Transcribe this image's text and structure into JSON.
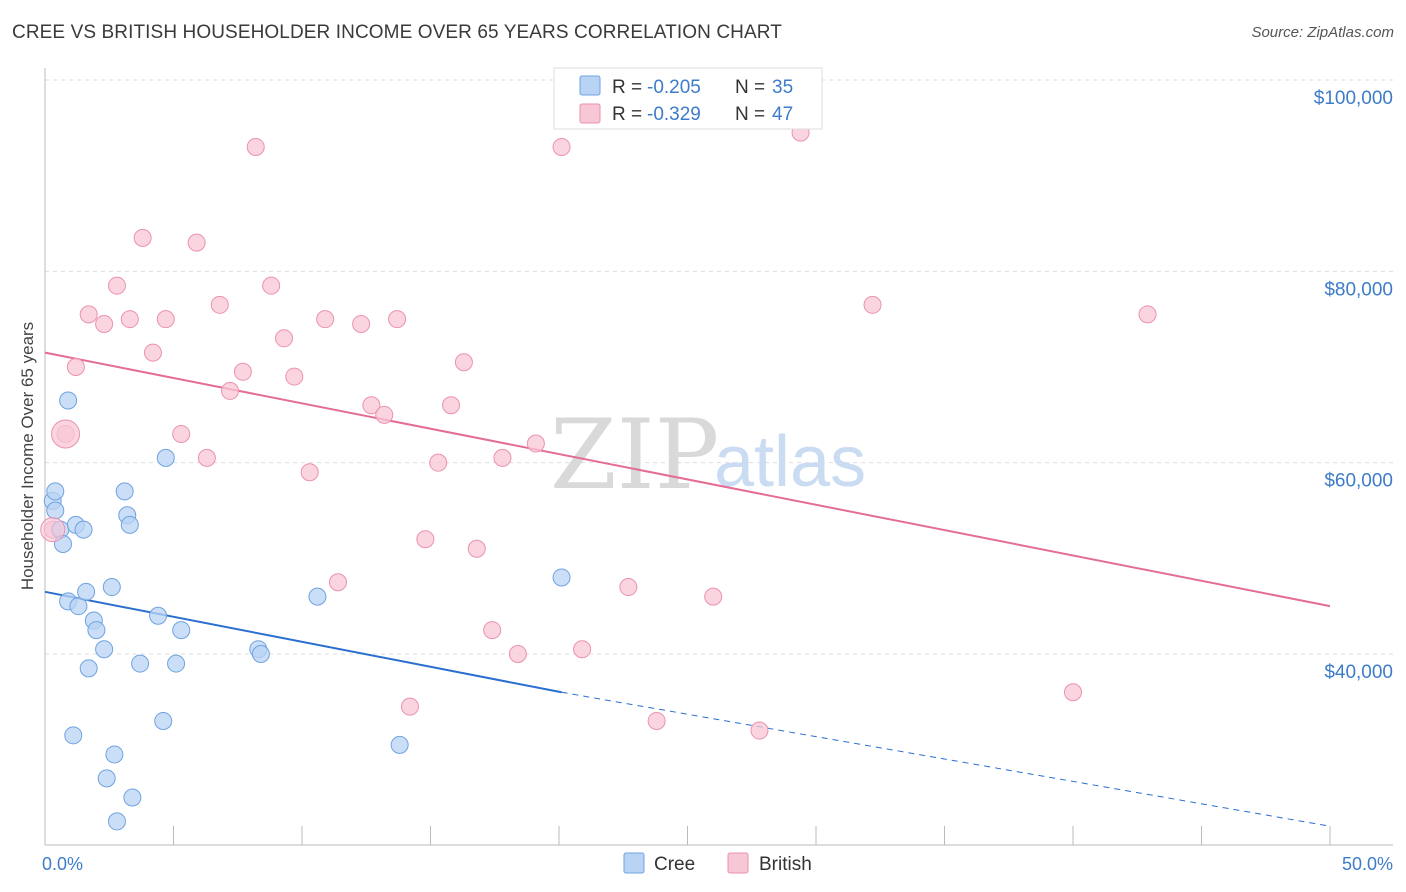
{
  "header": {
    "title": "CREE VS BRITISH HOUSEHOLDER INCOME OVER 65 YEARS CORRELATION CHART",
    "source": "Source: ZipAtlas.com"
  },
  "legend": {
    "cree": {
      "r_label": "R = ",
      "r_value": "-0.205",
      "n_label": "N = ",
      "n_value": "35"
    },
    "british": {
      "r_label": "R = ",
      "r_value": "-0.329",
      "n_label": "N = ",
      "n_value": "47"
    }
  },
  "watermark": {
    "zip": "ZIP",
    "atlas": "atlas"
  },
  "colors": {
    "cree_fill": "#b9d3f4",
    "cree_stroke": "#6fa3e0",
    "cree_line": "#2a6fcf",
    "british_fill": "#f8c7d5",
    "british_stroke": "#eb92ae",
    "british_line": "#e46d95"
  },
  "chart_data": {
    "type": "scatter",
    "title": "CREE VS BRITISH HOUSEHOLDER INCOME OVER 65 YEARS CORRELATION CHART",
    "xlabel": "",
    "ylabel": "Householder Income Over 65 years",
    "xlim": [
      0,
      50
    ],
    "ylim": [
      22000,
      103000
    ],
    "x_tick_labels": [
      "0.0%",
      "50.0%"
    ],
    "y_ticks": [
      40000,
      60000,
      80000,
      100000
    ],
    "y_tick_labels": [
      "$40,000",
      "$60,000",
      "$80,000",
      "$100,000"
    ],
    "grid": true,
    "legend_position": "bottom",
    "series": [
      {
        "name": "Cree",
        "points": [
          [
            0.3,
            56000
          ],
          [
            0.4,
            55000
          ],
          [
            0.4,
            57000
          ],
          [
            0.6,
            53000
          ],
          [
            0.7,
            51500
          ],
          [
            0.9,
            66500
          ],
          [
            0.9,
            45500
          ],
          [
            1.2,
            53500
          ],
          [
            1.3,
            45000
          ],
          [
            1.5,
            53000
          ],
          [
            1.6,
            46500
          ],
          [
            1.7,
            38500
          ],
          [
            1.9,
            43500
          ],
          [
            2.0,
            42500
          ],
          [
            2.3,
            40500
          ],
          [
            2.4,
            27000
          ],
          [
            2.6,
            47000
          ],
          [
            2.7,
            29500
          ],
          [
            2.8,
            22500
          ],
          [
            3.1,
            57000
          ],
          [
            3.2,
            54500
          ],
          [
            3.3,
            53500
          ],
          [
            3.4,
            25000
          ],
          [
            3.7,
            39000
          ],
          [
            4.4,
            44000
          ],
          [
            4.6,
            33000
          ],
          [
            4.7,
            60500
          ],
          [
            5.1,
            39000
          ],
          [
            5.3,
            42500
          ],
          [
            8.3,
            40500
          ],
          [
            8.4,
            40000
          ],
          [
            10.6,
            46000
          ],
          [
            13.8,
            30500
          ],
          [
            20.1,
            48000
          ],
          [
            1.1,
            31500
          ]
        ],
        "trend": {
          "x0": 0,
          "y0": 46500,
          "x1": 20.1,
          "y1": 36000,
          "dashed_to_x": 50,
          "dashed_to_y": 22000
        }
      },
      {
        "name": "British",
        "points": [
          [
            0.3,
            53000
          ],
          [
            0.8,
            63000
          ],
          [
            1.2,
            70000
          ],
          [
            1.7,
            75500
          ],
          [
            2.3,
            74500
          ],
          [
            2.8,
            78500
          ],
          [
            3.3,
            75000
          ],
          [
            3.8,
            83500
          ],
          [
            4.2,
            71500
          ],
          [
            4.7,
            75000
          ],
          [
            5.3,
            63000
          ],
          [
            5.9,
            83000
          ],
          [
            6.3,
            60500
          ],
          [
            6.8,
            76500
          ],
          [
            7.2,
            67500
          ],
          [
            7.7,
            69500
          ],
          [
            8.2,
            93000
          ],
          [
            8.8,
            78500
          ],
          [
            9.3,
            73000
          ],
          [
            9.7,
            69000
          ],
          [
            10.3,
            59000
          ],
          [
            10.9,
            75000
          ],
          [
            11.4,
            47500
          ],
          [
            12.3,
            74500
          ],
          [
            12.7,
            66000
          ],
          [
            13.2,
            65000
          ],
          [
            13.7,
            75000
          ],
          [
            14.2,
            34500
          ],
          [
            14.8,
            52000
          ],
          [
            15.3,
            60000
          ],
          [
            15.8,
            66000
          ],
          [
            16.3,
            70500
          ],
          [
            16.8,
            51000
          ],
          [
            17.4,
            42500
          ],
          [
            17.8,
            60500
          ],
          [
            18.4,
            40000
          ],
          [
            19.1,
            62000
          ],
          [
            20.1,
            93000
          ],
          [
            20.9,
            40500
          ],
          [
            22.7,
            47000
          ],
          [
            23.8,
            33000
          ],
          [
            26.0,
            46000
          ],
          [
            27.8,
            32000
          ],
          [
            29.4,
            94500
          ],
          [
            32.2,
            76500
          ],
          [
            40.0,
            36000
          ],
          [
            42.9,
            75500
          ]
        ],
        "trend": {
          "x0": 0,
          "y0": 71500,
          "x1": 50,
          "y1": 45000
        }
      }
    ]
  }
}
